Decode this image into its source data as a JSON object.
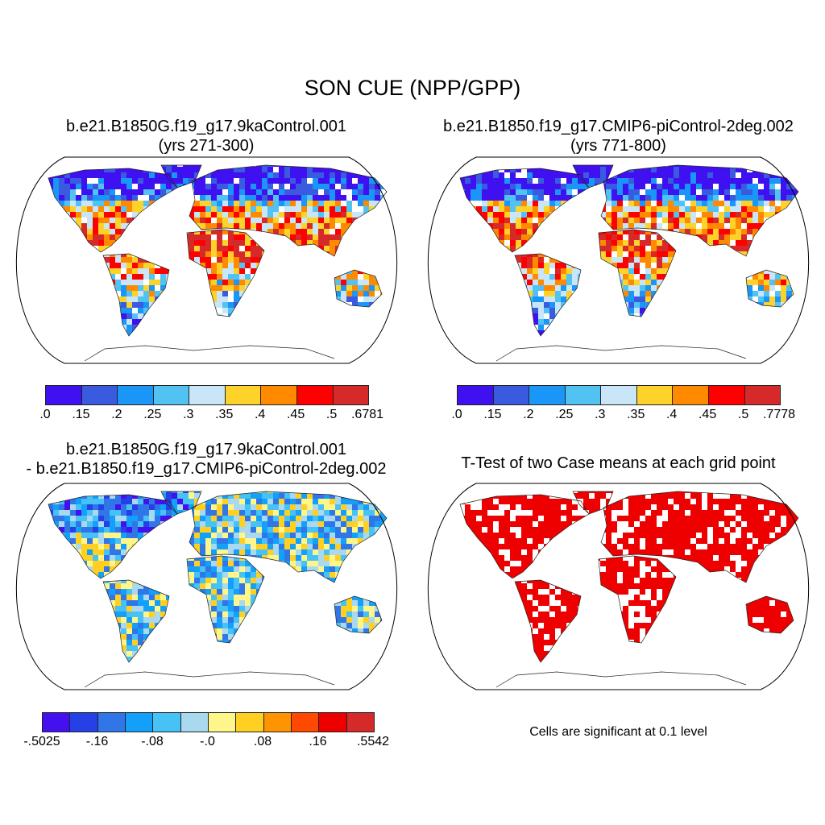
{
  "title": "SON CUE (NPP/GPP)",
  "panels": [
    {
      "title_line1": "b.e21.B1850G.f19_g17.9kaControl.001",
      "title_line2": "(yrs 271-300)"
    },
    {
      "title_line1": "b.e21.B1850.f19_g17.CMIP6-piControl-2deg.002",
      "title_line2": "(yrs 771-800)"
    },
    {
      "title_line1": "b.e21.B1850G.f19_g17.9kaControl.001",
      "title_line2": "- b.e21.B1850.f19_g17.CMIP6-piControl-2deg.002"
    },
    {
      "title_line1": "T-Test of two Case means at each grid point",
      "note": "Cells are significant at 0.1 level"
    }
  ],
  "colorbars": [
    {
      "colors": [
        "#3f10f0",
        "#3a5be0",
        "#1a96f8",
        "#52c2f2",
        "#c8e6f8",
        "#fdd22a",
        "#ff8a00",
        "#ff0000",
        "#d62a2a"
      ],
      "labels": [
        ".0",
        ".15",
        ".2",
        ".25",
        ".3",
        ".35",
        ".4",
        ".45",
        ".5",
        ".6781"
      ]
    },
    {
      "colors": [
        "#3f10f0",
        "#3a5be0",
        "#1a96f8",
        "#52c2f2",
        "#c8e6f8",
        "#fdd22a",
        "#ff8a00",
        "#ff0000",
        "#d62a2a"
      ],
      "labels": [
        ".0",
        ".15",
        ".2",
        ".25",
        ".3",
        ".35",
        ".4",
        ".45",
        ".5",
        ".7778"
      ]
    },
    {
      "colors": [
        "#4410f0",
        "#2640e8",
        "#3076e8",
        "#12a0fa",
        "#46c2f6",
        "#aad8ee",
        "#fff68a",
        "#ffcf22",
        "#ff9400",
        "#ff4800",
        "#ee0000",
        "#d42a2a"
      ],
      "labels": [
        "-.5025",
        "-.16",
        "-.08",
        "-.0",
        ".08",
        ".16",
        ".5542"
      ]
    }
  ],
  "significance_color": "#ee0000"
}
